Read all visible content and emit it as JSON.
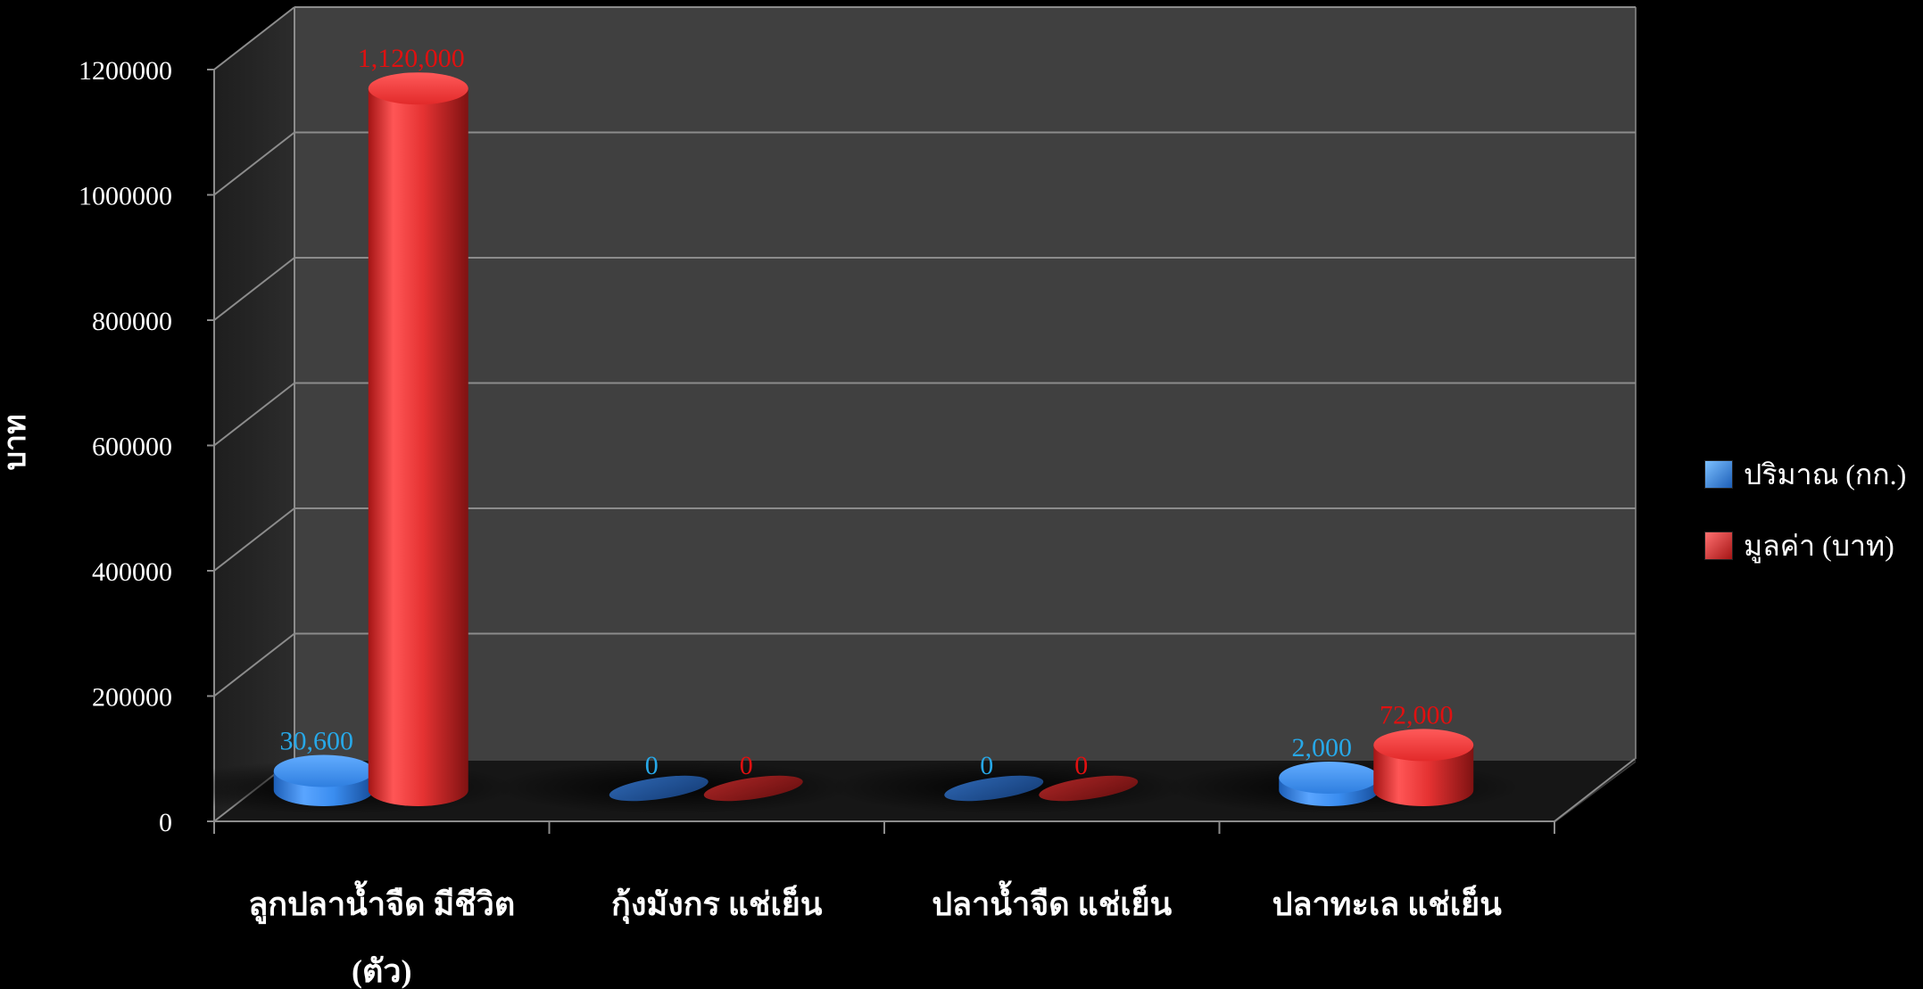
{
  "chart_data": {
    "type": "bar",
    "categories": [
      [
        "ลูกปลาน้ำจืด มีชีวิต",
        "(ตัว)"
      ],
      [
        "กุ้งมังกร แช่เย็น"
      ],
      [
        "ปลาน้ำจืด แช่เย็น"
      ],
      [
        "ปลาทะเล แช่เย็น"
      ]
    ],
    "series": [
      {
        "name": "ปริมาณ (กก.)",
        "color": "#3a8df0",
        "values": [
          30600,
          0,
          0,
          2000
        ],
        "labels": [
          "30,600",
          "0",
          "0",
          "2,000"
        ],
        "label_color": "#27a8e8"
      },
      {
        "name": "มูลค่า (บาท)",
        "color": "#e52b2b",
        "values": [
          1120000,
          0,
          0,
          72000
        ],
        "labels": [
          "1,120,000",
          "0",
          "0",
          "72,000"
        ],
        "label_color": "#e01010"
      }
    ],
    "yticks": [
      "0",
      "200000",
      "400000",
      "600000",
      "800000",
      "1000000",
      "1200000"
    ],
    "ylabel": "บาท",
    "ylim": [
      0,
      1200000
    ],
    "grid": true,
    "legend_position": "right",
    "background": "#000000",
    "wall_color": "#404040"
  }
}
